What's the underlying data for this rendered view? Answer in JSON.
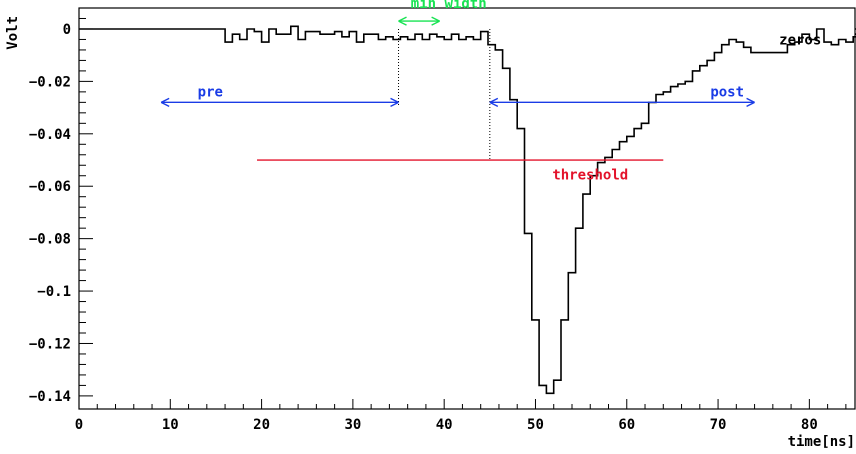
{
  "chart_data": {
    "type": "line",
    "xlabel": "time[ns]",
    "ylabel": "Volt",
    "xlim": [
      0,
      85
    ],
    "ylim": [
      -0.145,
      0.008
    ],
    "x_ticks": [
      0,
      10,
      20,
      30,
      40,
      50,
      60,
      70,
      80
    ],
    "x_tick_labels": [
      "0",
      "10",
      "20",
      "30",
      "40",
      "50",
      "60",
      "70",
      "80"
    ],
    "y_ticks": [
      0,
      -0.02,
      -0.04,
      -0.06,
      -0.08,
      -0.1,
      -0.12,
      -0.14
    ],
    "y_tick_labels": [
      "0",
      "−0.02",
      "−0.04",
      "−0.06",
      "−0.08",
      "−0.1",
      "−0.12",
      "−0.14"
    ],
    "grid": false,
    "colors": {
      "signal": "#000000",
      "range_arrows": "#1a3ce6",
      "min_width": "#17e352",
      "threshold": "#e3132b"
    },
    "series": [
      {
        "style": "step",
        "bin_width": 0.8,
        "x_start": 0,
        "values": [
          0,
          0,
          0,
          0,
          0,
          0,
          0,
          0,
          0,
          0,
          0,
          0,
          0,
          0,
          0,
          0,
          0,
          0,
          0,
          0,
          -0.005,
          -0.002,
          -0.004,
          0,
          -0.001,
          -0.005,
          0,
          -0.002,
          -0.002,
          0.001,
          -0.004,
          -0.001,
          -0.001,
          -0.002,
          -0.002,
          -0.001,
          -0.003,
          -0.001,
          -0.005,
          -0.002,
          -0.002,
          -0.004,
          -0.003,
          -0.004,
          -0.003,
          -0.004,
          -0.002,
          -0.004,
          -0.002,
          -0.003,
          -0.004,
          -0.002,
          -0.004,
          -0.003,
          -0.004,
          -0.001,
          -0.006,
          -0.008,
          -0.015,
          -0.027,
          -0.038,
          -0.078,
          -0.111,
          -0.136,
          -0.139,
          -0.134,
          -0.111,
          -0.093,
          -0.076,
          -0.063,
          -0.056,
          -0.051,
          -0.049,
          -0.046,
          -0.043,
          -0.041,
          -0.038,
          -0.036,
          -0.028,
          -0.025,
          -0.024,
          -0.022,
          -0.021,
          -0.02,
          -0.016,
          -0.014,
          -0.012,
          -0.009,
          -0.006,
          -0.004,
          -0.005,
          -0.007,
          -0.009,
          -0.009,
          -0.009,
          -0.009,
          -0.009,
          -0.006,
          -0.005,
          -0.002,
          -0.004,
          0,
          -0.005,
          -0.006,
          -0.004,
          -0.005,
          -0.003,
          -0.003,
          -0.002,
          0,
          0,
          0,
          0,
          0,
          0,
          0,
          0
        ]
      }
    ],
    "annotations": {
      "zeros": {
        "text": "zeros",
        "x": 79,
        "y": -0.004
      },
      "pre": {
        "text": "pre",
        "x_from": 9,
        "x_to": 35,
        "y": -0.028,
        "label_x": 13
      },
      "post": {
        "text": "post",
        "x_from": 45,
        "x_to": 74,
        "y": -0.028,
        "label_x": 71
      },
      "min_width": {
        "text": "min width",
        "x_from": 35,
        "x_to": 39.5,
        "y": 0.003,
        "label_x": 40.5,
        "label_y": 0.0035
      },
      "threshold": {
        "text": "threshold",
        "x_from": 19.5,
        "x_to": 64,
        "y": -0.05,
        "label_x": 56,
        "label_y": -0.0555
      },
      "dotted_markers": [
        {
          "x": 35,
          "y_top": 0.0,
          "y_bottom": -0.029
        },
        {
          "x": 45,
          "y_top": 0.0,
          "y_bottom": -0.05
        }
      ]
    }
  }
}
